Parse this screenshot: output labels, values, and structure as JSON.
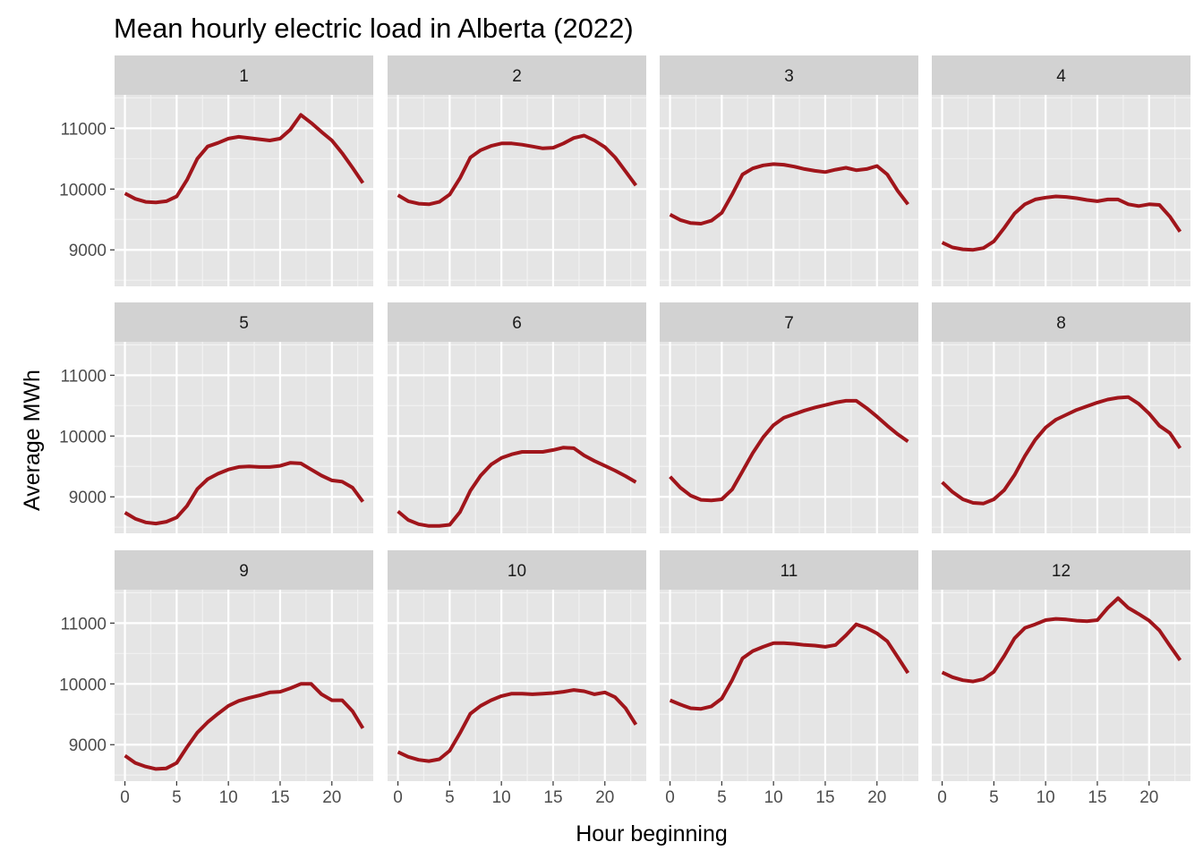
{
  "chart_data": {
    "type": "line",
    "title": "Mean hourly electric load in Alberta (2022)",
    "xlabel": "Hour beginning",
    "ylabel": "Average MWh",
    "xlim": [
      -1,
      24
    ],
    "ylim": [
      8400,
      11550
    ],
    "x_ticks": [
      0,
      5,
      10,
      15,
      20
    ],
    "y_ticks": [
      9000,
      10000,
      11000
    ],
    "grid": true,
    "facet_layout": {
      "rows": 3,
      "cols": 4
    },
    "line_color": "#a0151b",
    "panel_background": "#e5e5e5",
    "strip_background": "#d2d2d2",
    "x": [
      0,
      1,
      2,
      3,
      4,
      5,
      6,
      7,
      8,
      9,
      10,
      11,
      12,
      13,
      14,
      15,
      16,
      17,
      18,
      19,
      20,
      21,
      22,
      23
    ],
    "panels": [
      {
        "label": "1",
        "values": [
          9930,
          9840,
          9790,
          9780,
          9800,
          9880,
          10150,
          10500,
          10700,
          10760,
          10830,
          10860,
          10840,
          10820,
          10800,
          10830,
          10980,
          11220,
          11090,
          10940,
          10800,
          10590,
          10350,
          10100
        ]
      },
      {
        "label": "2",
        "values": [
          9900,
          9800,
          9760,
          9750,
          9790,
          9910,
          10180,
          10520,
          10640,
          10710,
          10750,
          10750,
          10730,
          10700,
          10670,
          10680,
          10750,
          10840,
          10880,
          10800,
          10690,
          10520,
          10290,
          10060
        ]
      },
      {
        "label": "3",
        "values": [
          9580,
          9490,
          9440,
          9430,
          9480,
          9610,
          9910,
          10240,
          10340,
          10390,
          10410,
          10400,
          10370,
          10330,
          10300,
          10280,
          10320,
          10350,
          10310,
          10330,
          10380,
          10240,
          9970,
          9750
        ]
      },
      {
        "label": "4",
        "values": [
          9120,
          9040,
          9010,
          9000,
          9030,
          9140,
          9360,
          9600,
          9750,
          9830,
          9860,
          9880,
          9870,
          9850,
          9820,
          9800,
          9830,
          9830,
          9750,
          9720,
          9750,
          9740,
          9550,
          9300
        ]
      },
      {
        "label": "5",
        "values": [
          8740,
          8640,
          8580,
          8560,
          8590,
          8660,
          8850,
          9130,
          9290,
          9380,
          9450,
          9490,
          9500,
          9490,
          9490,
          9510,
          9560,
          9550,
          9450,
          9350,
          9270,
          9250,
          9150,
          8920
        ]
      },
      {
        "label": "6",
        "values": [
          8760,
          8620,
          8550,
          8520,
          8520,
          8540,
          8750,
          9100,
          9350,
          9530,
          9640,
          9700,
          9740,
          9740,
          9740,
          9770,
          9810,
          9800,
          9680,
          9590,
          9510,
          9430,
          9340,
          9240
        ]
      },
      {
        "label": "7",
        "values": [
          9330,
          9150,
          9020,
          8950,
          8940,
          8960,
          9120,
          9420,
          9720,
          9980,
          10180,
          10300,
          10360,
          10420,
          10470,
          10510,
          10550,
          10580,
          10580,
          10460,
          10320,
          10170,
          10030,
          9910
        ]
      },
      {
        "label": "8",
        "values": [
          9240,
          9080,
          8960,
          8900,
          8890,
          8960,
          9110,
          9360,
          9670,
          9940,
          10140,
          10270,
          10350,
          10430,
          10490,
          10550,
          10600,
          10630,
          10640,
          10530,
          10370,
          10170,
          10050,
          9800
        ]
      },
      {
        "label": "9",
        "values": [
          8820,
          8700,
          8640,
          8600,
          8610,
          8700,
          8960,
          9200,
          9370,
          9510,
          9640,
          9720,
          9770,
          9810,
          9860,
          9870,
          9930,
          10000,
          10000,
          9830,
          9730,
          9730,
          9550,
          9270
        ]
      },
      {
        "label": "10",
        "values": [
          8880,
          8800,
          8750,
          8730,
          8760,
          8900,
          9190,
          9510,
          9640,
          9730,
          9800,
          9840,
          9840,
          9830,
          9840,
          9850,
          9870,
          9900,
          9880,
          9830,
          9860,
          9780,
          9600,
          9330
        ]
      },
      {
        "label": "11",
        "values": [
          9730,
          9660,
          9600,
          9590,
          9630,
          9760,
          10060,
          10420,
          10540,
          10610,
          10670,
          10670,
          10660,
          10640,
          10630,
          10610,
          10640,
          10800,
          10980,
          10920,
          10830,
          10700,
          10440,
          10180
        ]
      },
      {
        "label": "12",
        "values": [
          10190,
          10110,
          10060,
          10040,
          10080,
          10200,
          10460,
          10750,
          10920,
          10980,
          11050,
          11070,
          11060,
          11040,
          11030,
          11050,
          11250,
          11410,
          11250,
          11150,
          11040,
          10880,
          10630,
          10390
        ]
      }
    ]
  }
}
